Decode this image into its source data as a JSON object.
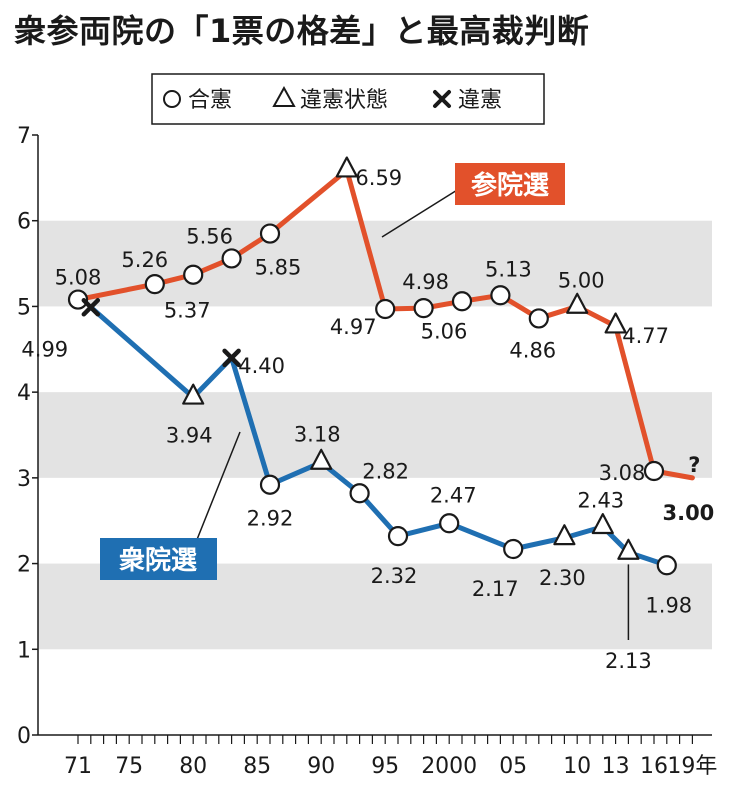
{
  "title": "衆参両院の「1票の格差」と最高裁判断",
  "legend": [
    {
      "symbol": "circle",
      "label": "合憲"
    },
    {
      "symbol": "triangle",
      "label": "違憲状態"
    },
    {
      "symbol": "cross",
      "label": "違憲"
    }
  ],
  "chart_data": {
    "type": "line",
    "title": "衆参両院の「1票の格差」と最高裁判断",
    "ylim": [
      0,
      7
    ],
    "yticks": [
      "0",
      "1",
      "2",
      "3",
      "4",
      "5",
      "6",
      "7"
    ],
    "xticks": [
      "71",
      "75",
      "80",
      "85",
      "90",
      "95",
      "2000",
      "05",
      "10",
      "13",
      "16",
      "19年"
    ],
    "xtick_years": [
      1971,
      1975,
      1980,
      1985,
      1990,
      1995,
      2000,
      2005,
      2010,
      2013,
      2016,
      2019
    ],
    "xlim": [
      1970,
      2020
    ],
    "grid": "alternating horizontal bands",
    "series": [
      {
        "name": "参院選",
        "color": "#e2512b",
        "points": [
          {
            "year": 1971,
            "value": 5.08,
            "label": "5.08",
            "ruling": "合憲"
          },
          {
            "year": 1977,
            "value": 5.26,
            "label": "5.26",
            "ruling": "合憲"
          },
          {
            "year": 1980,
            "value": 5.37,
            "label": "5.37",
            "ruling": "合憲"
          },
          {
            "year": 1983,
            "value": 5.56,
            "label": "5.56",
            "ruling": "合憲"
          },
          {
            "year": 1986,
            "value": 5.85,
            "label": "5.85",
            "ruling": "合憲"
          },
          {
            "year": 1992,
            "value": 6.59,
            "label": "6.59",
            "ruling": "違憲状態"
          },
          {
            "year": 1995,
            "value": 4.97,
            "label": "4.97",
            "ruling": "合憲"
          },
          {
            "year": 1998,
            "value": 4.98,
            "label": "4.98",
            "ruling": "合憲"
          },
          {
            "year": 2001,
            "value": 5.06,
            "label": "5.06",
            "ruling": "合憲"
          },
          {
            "year": 2004,
            "value": 5.13,
            "label": "5.13",
            "ruling": "合憲"
          },
          {
            "year": 2007,
            "value": 4.86,
            "label": "4.86",
            "ruling": "合憲"
          },
          {
            "year": 2010,
            "value": 5.0,
            "label": "5.00",
            "ruling": "違憲状態"
          },
          {
            "year": 2013,
            "value": 4.77,
            "label": "4.77",
            "ruling": "違憲状態"
          },
          {
            "year": 2016,
            "value": 3.08,
            "label": "3.08",
            "ruling": "合憲"
          },
          {
            "year": 2019,
            "value": 3.0,
            "label": "3.00",
            "ruling": "?"
          }
        ],
        "annotation": "?"
      },
      {
        "name": "衆院選",
        "color": "#1f6fb2",
        "points": [
          {
            "year": 1972,
            "value": 4.99,
            "label": "4.99",
            "ruling": "違憲"
          },
          {
            "year": 1980,
            "value": 3.94,
            "label": "3.94",
            "ruling": "違憲状態"
          },
          {
            "year": 1983,
            "value": 4.4,
            "label": "4.40",
            "ruling": "違憲"
          },
          {
            "year": 1986,
            "value": 2.92,
            "label": "2.92",
            "ruling": "合憲"
          },
          {
            "year": 1990,
            "value": 3.18,
            "label": "3.18",
            "ruling": "違憲状態"
          },
          {
            "year": 1993,
            "value": 2.82,
            "label": "2.82",
            "ruling": "合憲"
          },
          {
            "year": 1996,
            "value": 2.32,
            "label": "2.32",
            "ruling": "合憲"
          },
          {
            "year": 2000,
            "value": 2.47,
            "label": "2.47",
            "ruling": "合憲"
          },
          {
            "year": 2005,
            "value": 2.17,
            "label": "2.17",
            "ruling": "合憲"
          },
          {
            "year": 2009,
            "value": 2.3,
            "label": "2.30",
            "ruling": "違憲状態"
          },
          {
            "year": 2012,
            "value": 2.43,
            "label": "2.43",
            "ruling": "違憲状態"
          },
          {
            "year": 2014,
            "value": 2.13,
            "label": "2.13",
            "ruling": "違憲状態"
          },
          {
            "year": 2017,
            "value": 1.98,
            "label": "1.98",
            "ruling": "合憲"
          }
        ]
      }
    ]
  }
}
